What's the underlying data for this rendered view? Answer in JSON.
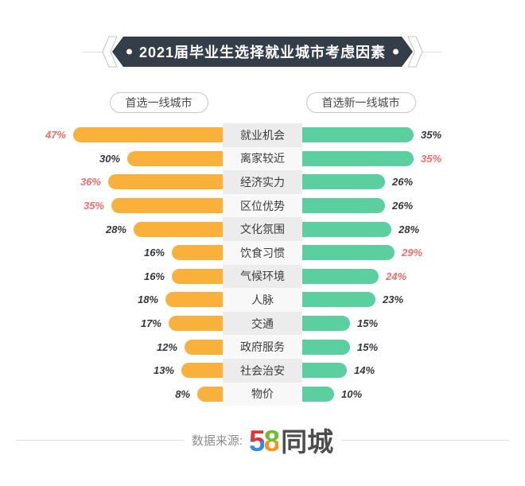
{
  "title": "2021届毕业生选择就业城市考虑因素",
  "legend": {
    "left": "首选一线城市",
    "right": "首选新一线城市"
  },
  "colors": {
    "left_bar": "#F9B13C",
    "right_bar": "#5BCFA0",
    "highlight": "#F56C6C",
    "normal_value": "#35373B",
    "banner_bg": "#333E48",
    "logo_5_top": "#E23431",
    "logo_5_bottom": "#2E8BE6",
    "logo_8_top": "#6CBE2F",
    "logo_8_bottom": "#F7941D"
  },
  "chart_data": {
    "type": "bar",
    "orientation": "horizontal-diverging",
    "unit": "%",
    "categories": [
      "就业机会",
      "离家较近",
      "经济实力",
      "区位优势",
      "文化氛围",
      "饮食习惯",
      "气候环境",
      "人脉",
      "交通",
      "政府服务",
      "社会治安",
      "物价"
    ],
    "series": [
      {
        "name": "首选一线城市",
        "side": "left",
        "color": "#F9B13C",
        "values": [
          47,
          30,
          36,
          35,
          28,
          16,
          16,
          18,
          17,
          12,
          13,
          8
        ],
        "highlighted": [
          true,
          false,
          true,
          true,
          false,
          false,
          false,
          false,
          false,
          false,
          false,
          false
        ]
      },
      {
        "name": "首选新一线城市",
        "side": "right",
        "color": "#5BCFA0",
        "values": [
          35,
          35,
          26,
          26,
          28,
          29,
          24,
          23,
          15,
          15,
          14,
          10
        ],
        "highlighted": [
          false,
          true,
          false,
          false,
          false,
          true,
          true,
          false,
          false,
          false,
          false,
          false
        ]
      }
    ],
    "xlim": [
      0,
      50
    ],
    "value_labels_shown": true,
    "grid": false,
    "legend_position": "top"
  },
  "footer": {
    "source_label": "数据来源:",
    "logo_58": "58",
    "logo_5": "5",
    "logo_8": "8",
    "logo_city": "同城"
  }
}
